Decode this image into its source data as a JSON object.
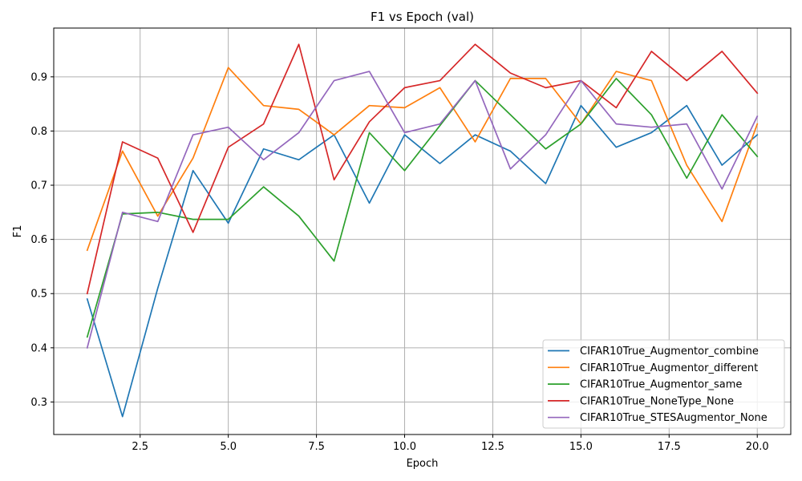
{
  "chart_data": {
    "type": "line",
    "title": "F1 vs Epoch (val)",
    "xlabel": "Epoch",
    "ylabel": "F1",
    "xlim": [
      0.05,
      20.95
    ],
    "ylim": [
      0.24,
      0.99
    ],
    "xticks": [
      2.5,
      5.0,
      7.5,
      10.0,
      12.5,
      15.0,
      17.5,
      20.0
    ],
    "xtick_labels": [
      "2.5",
      "5.0",
      "7.5",
      "10.0",
      "12.5",
      "15.0",
      "17.5",
      "20.0"
    ],
    "yticks": [
      0.3,
      0.4,
      0.5,
      0.6,
      0.7,
      0.8,
      0.9
    ],
    "ytick_labels": [
      "0.3",
      "0.4",
      "0.5",
      "0.6",
      "0.7",
      "0.8",
      "0.9"
    ],
    "grid": true,
    "legend_position": "bottom-right",
    "x": [
      1,
      2,
      3,
      4,
      5,
      6,
      7,
      8,
      9,
      10,
      11,
      12,
      13,
      14,
      15,
      16,
      17,
      18,
      19,
      20
    ],
    "series": [
      {
        "name": "CIFAR10True_Augmentor_combine",
        "color": "#1f77b4",
        "values": [
          0.49,
          0.273,
          0.51,
          0.727,
          0.63,
          0.767,
          0.747,
          0.793,
          0.667,
          0.793,
          0.74,
          0.793,
          0.763,
          0.703,
          0.847,
          0.77,
          0.797,
          0.847,
          0.737,
          0.793
        ]
      },
      {
        "name": "CIFAR10True_Augmentor_different",
        "color": "#ff7f0e",
        "values": [
          0.58,
          0.763,
          0.643,
          0.75,
          0.917,
          0.847,
          0.84,
          0.793,
          0.847,
          0.843,
          0.88,
          0.78,
          0.897,
          0.897,
          0.813,
          0.91,
          0.893,
          0.737,
          0.633,
          0.813
        ]
      },
      {
        "name": "CIFAR10True_Augmentor_same",
        "color": "#2ca02c",
        "values": [
          0.42,
          0.647,
          0.65,
          0.637,
          0.637,
          0.697,
          0.643,
          0.56,
          0.797,
          0.727,
          0.81,
          0.893,
          0.83,
          0.767,
          0.813,
          0.897,
          0.83,
          0.713,
          0.83,
          0.753
        ]
      },
      {
        "name": "CIFAR10True_NoneType_None",
        "color": "#d62728",
        "values": [
          0.5,
          0.78,
          0.75,
          0.613,
          0.77,
          0.813,
          0.96,
          0.71,
          0.817,
          0.88,
          0.893,
          0.96,
          0.907,
          0.88,
          0.893,
          0.843,
          0.947,
          0.893,
          0.947,
          0.87
        ]
      },
      {
        "name": "CIFAR10True_STESAugmentor_None",
        "color": "#9467bd",
        "values": [
          0.4,
          0.65,
          0.633,
          0.793,
          0.807,
          0.747,
          0.797,
          0.893,
          0.91,
          0.797,
          0.813,
          0.893,
          0.73,
          0.793,
          0.893,
          0.813,
          0.807,
          0.813,
          0.693,
          0.827
        ]
      }
    ]
  }
}
